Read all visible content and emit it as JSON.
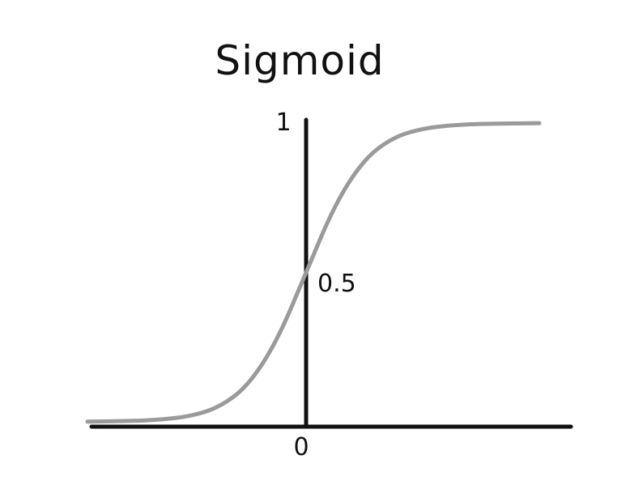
{
  "chart_data": {
    "type": "line",
    "title": "Sigmoid",
    "xlabel": "",
    "ylabel": "",
    "x_tick_labels": [
      "0"
    ],
    "y_tick_labels": [
      "1"
    ],
    "annotations": [
      "0.5"
    ],
    "xlim": [
      -8,
      8
    ],
    "ylim": [
      0,
      1
    ],
    "grid": false,
    "series": [
      {
        "color": "#9a9a9a",
        "x": [
          -7.5,
          -6,
          -5,
          -4,
          -3,
          -2,
          -1,
          0,
          1,
          2,
          3,
          4,
          5,
          6,
          8
        ],
        "y": [
          0.0006,
          0.0025,
          0.0067,
          0.018,
          0.047,
          0.119,
          0.269,
          0.5,
          0.731,
          0.881,
          0.953,
          0.982,
          0.9933,
          0.9975,
          0.9997
        ]
      }
    ],
    "axis_color": "#111111"
  }
}
